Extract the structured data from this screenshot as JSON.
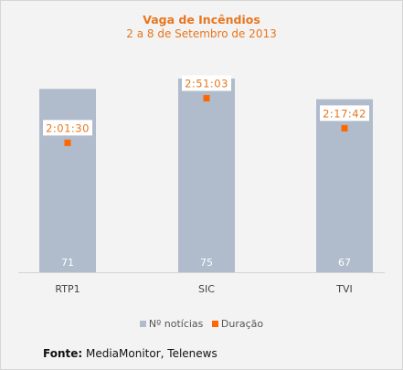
{
  "chart_data": {
    "type": "bar",
    "title": "Vaga de Incêndios",
    "subtitle": "2 a 8 de Setembro de  2013",
    "categories": [
      "RTP1",
      "SIC",
      "TVI"
    ],
    "series": [
      {
        "name": "Nº notícias",
        "type": "bar",
        "values": [
          71,
          75,
          67
        ],
        "color": "#b0bccb"
      },
      {
        "name": "Duração",
        "type": "point",
        "values": [
          "2:01:30",
          "2:51:03",
          "2:17:42"
        ],
        "minutes": [
          121.5,
          171.05,
          137.7
        ],
        "color": "#ff6600"
      }
    ],
    "legend": "bottom"
  },
  "source": {
    "label": "Fonte:",
    "text": " MediaMonitor, Telenews"
  }
}
